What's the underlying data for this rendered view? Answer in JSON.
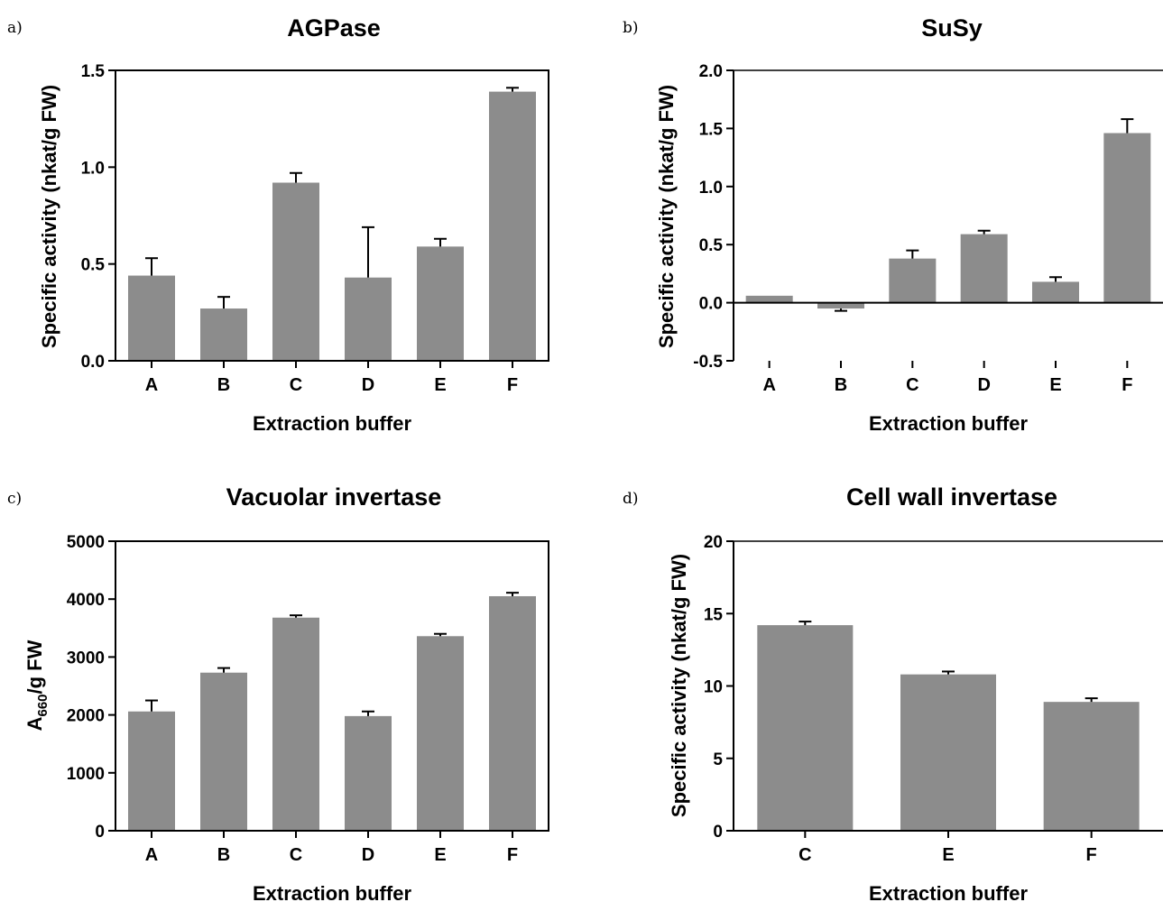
{
  "chart_data": [
    {
      "type": "bar",
      "panel": "a)",
      "title": "AGPase",
      "xlabel": "Extraction buffer",
      "ylabel": "Specific activity (nkat/g FW)",
      "ylim": [
        0,
        1.5
      ],
      "yticks": [
        "0.0",
        "0.5",
        "1.0",
        "1.5"
      ],
      "categories": [
        "A",
        "B",
        "C",
        "D",
        "E",
        "F"
      ],
      "values": [
        0.44,
        0.27,
        0.92,
        0.43,
        0.59,
        1.39
      ],
      "errors": [
        0.09,
        0.06,
        0.05,
        0.26,
        0.04,
        0.02
      ],
      "grid": false,
      "bar_color": "#8c8c8c"
    },
    {
      "type": "bar",
      "panel": "b)",
      "title": "SuSy",
      "xlabel": "Extraction buffer",
      "ylabel": "Specific activity (nkat/g FW)",
      "ylim": [
        -0.5,
        2.0
      ],
      "yticks": [
        "-0.5",
        "0.0",
        "0.5",
        "1.0",
        "1.5",
        "2.0"
      ],
      "categories": [
        "A",
        "B",
        "C",
        "D",
        "E",
        "F"
      ],
      "values": [
        0.06,
        -0.05,
        0.38,
        0.59,
        0.18,
        1.46
      ],
      "errors": [
        0.0,
        0.02,
        0.07,
        0.03,
        0.04,
        0.12
      ],
      "grid": false,
      "bar_color": "#8c8c8c"
    },
    {
      "type": "bar",
      "panel": "c)",
      "title": "Vacuolar invertase",
      "xlabel": "Extraction buffer",
      "ylabel": "A660/g FW",
      "ylabel_parts": [
        "A",
        "660",
        "/g FW"
      ],
      "ylim": [
        0,
        5000
      ],
      "yticks": [
        "0",
        "1000",
        "2000",
        "3000",
        "4000",
        "5000"
      ],
      "categories": [
        "A",
        "B",
        "C",
        "D",
        "E",
        "F"
      ],
      "values": [
        2060,
        2730,
        3680,
        1980,
        3360,
        4050
      ],
      "errors": [
        190,
        80,
        40,
        80,
        40,
        60
      ],
      "grid": false,
      "bar_color": "#8c8c8c"
    },
    {
      "type": "bar",
      "panel": "d)",
      "title": "Cell wall invertase",
      "xlabel": "Extraction buffer",
      "ylabel": "Specific activity (nkat/g FW)",
      "ylim": [
        0,
        20
      ],
      "yticks": [
        "0",
        "5",
        "10",
        "15",
        "20"
      ],
      "categories": [
        "C",
        "E",
        "F"
      ],
      "values": [
        14.2,
        10.8,
        8.9
      ],
      "errors": [
        0.25,
        0.2,
        0.25
      ],
      "grid": false,
      "bar_color": "#8c8c8c"
    }
  ]
}
